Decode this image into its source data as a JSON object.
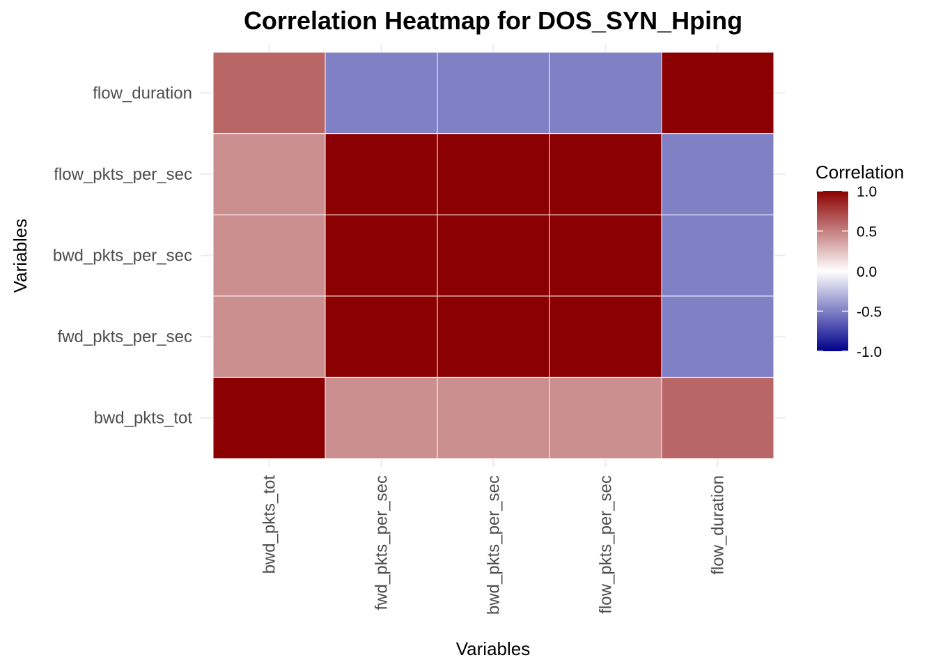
{
  "chart_data": {
    "type": "heatmap",
    "title": "Correlation Heatmap for DOS_SYN_Hping",
    "xlabel": "Variables",
    "ylabel": "Variables",
    "x_categories": [
      "bwd_pkts_tot",
      "fwd_pkts_per_sec",
      "bwd_pkts_per_sec",
      "flow_pkts_per_sec",
      "flow_duration"
    ],
    "y_categories": [
      "bwd_pkts_tot",
      "fwd_pkts_per_sec",
      "bwd_pkts_per_sec",
      "flow_pkts_per_sec",
      "flow_duration"
    ],
    "values": [
      [
        1.0,
        0.44,
        0.44,
        0.44,
        0.6
      ],
      [
        0.44,
        1.0,
        1.0,
        1.0,
        -0.5
      ],
      [
        0.44,
        1.0,
        1.0,
        1.0,
        -0.5
      ],
      [
        0.44,
        1.0,
        1.0,
        1.0,
        -0.5
      ],
      [
        0.6,
        -0.5,
        -0.5,
        -0.5,
        1.0
      ]
    ],
    "color_scale": {
      "low": "#00008b",
      "mid": "#ffffff",
      "high": "#8b0000",
      "limits": [
        -1.0,
        1.0
      ]
    },
    "legend": {
      "title": "Correlation",
      "ticks": [
        "1.0",
        "0.5",
        "0.0",
        "-0.5",
        "-1.0"
      ],
      "position": "right"
    },
    "grid": true
  }
}
